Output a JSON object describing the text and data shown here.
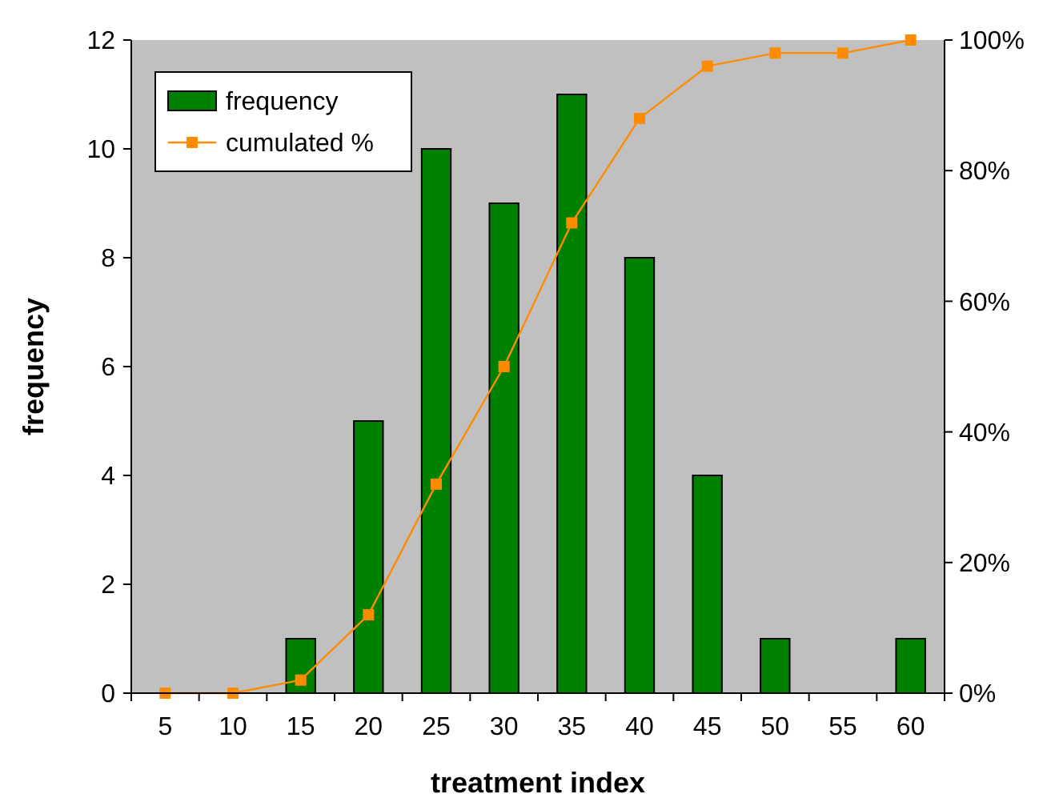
{
  "chart_data": {
    "type": "bar",
    "xlabel": "treatment index",
    "ylabel": "frequency",
    "categories": [
      "5",
      "10",
      "15",
      "20",
      "25",
      "30",
      "35",
      "40",
      "45",
      "50",
      "55",
      "60"
    ],
    "series": [
      {
        "name": "frequency",
        "color": "#008000",
        "values": [
          0,
          0,
          1,
          5,
          10,
          9,
          11,
          8,
          4,
          1,
          0,
          1
        ]
      },
      {
        "name": "cumulated %",
        "type": "line",
        "axis": "y2",
        "color": "#ff8c00",
        "marker": "square",
        "values": [
          0,
          0,
          2,
          12,
          32,
          50,
          72,
          88,
          96,
          98,
          98,
          100
        ]
      }
    ],
    "ylim": [
      0,
      12
    ],
    "yticks": [
      0,
      2,
      4,
      6,
      8,
      10,
      12
    ],
    "y2lim": [
      0,
      100
    ],
    "y2ticks": [
      {
        "value": 0,
        "label": "0%"
      },
      {
        "value": 20,
        "label": "20%"
      },
      {
        "value": 40,
        "label": "40%"
      },
      {
        "value": 60,
        "label": "60%"
      },
      {
        "value": 80,
        "label": "80%"
      },
      {
        "value": 100,
        "label": "100%"
      }
    ],
    "grid": false,
    "legend": "top left"
  }
}
